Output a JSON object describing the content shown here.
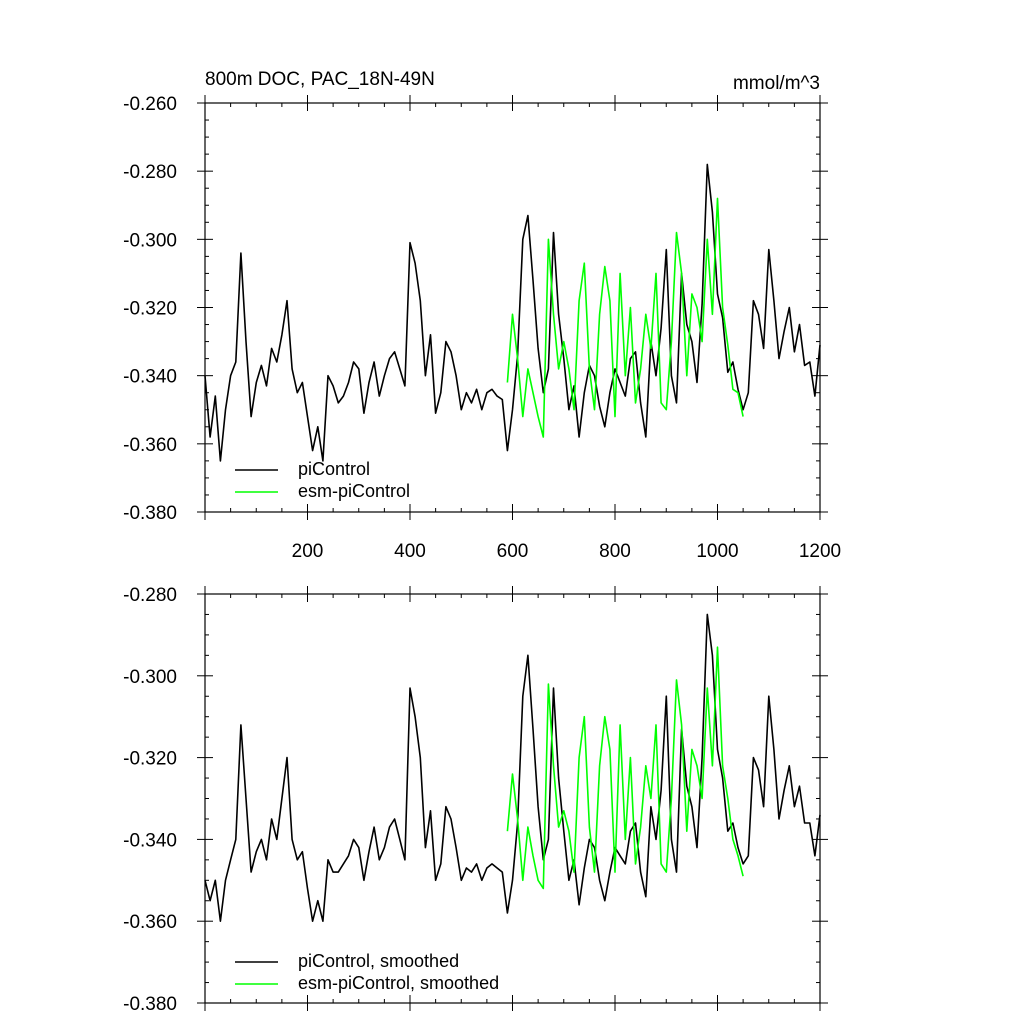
{
  "chart_data": [
    {
      "type": "line",
      "title": "800m DOC, PAC_18N-49N",
      "units": "mmol/m^3",
      "xlim": [
        0,
        1200
      ],
      "ylim": [
        -0.38,
        -0.26
      ],
      "xticks": [
        200,
        400,
        600,
        800,
        1000,
        1200
      ],
      "xtick_labels": [
        "200",
        "400",
        "600",
        "800",
        "1000",
        "1200"
      ],
      "yticks": [
        -0.26,
        -0.28,
        -0.3,
        -0.32,
        -0.34,
        -0.36,
        -0.38
      ],
      "ytick_labels": [
        "-0.260",
        "-0.280",
        "-0.300",
        "-0.320",
        "-0.340",
        "-0.360",
        "-0.380"
      ],
      "legend_position": "bottom-left",
      "series": [
        {
          "name": "piControl",
          "color": "#000000",
          "x": [
            0,
            10,
            20,
            30,
            40,
            50,
            60,
            70,
            80,
            90,
            100,
            110,
            120,
            130,
            140,
            150,
            160,
            170,
            180,
            190,
            200,
            210,
            220,
            230,
            240,
            250,
            260,
            270,
            280,
            290,
            300,
            310,
            320,
            330,
            340,
            350,
            360,
            370,
            380,
            390,
            400,
            410,
            420,
            430,
            440,
            450,
            460,
            470,
            480,
            490,
            500,
            510,
            520,
            530,
            540,
            550,
            560,
            570,
            580,
            590,
            600,
            610,
            620,
            630,
            640,
            650,
            660,
            670,
            680,
            690,
            700,
            710,
            720,
            730,
            740,
            750,
            760,
            770,
            780,
            790,
            800,
            810,
            820,
            830,
            840,
            850,
            860,
            870,
            880,
            890,
            900,
            910,
            920,
            930,
            940,
            950,
            960,
            970,
            980,
            990,
            1000,
            1010,
            1020,
            1030,
            1040,
            1050,
            1060,
            1070,
            1080,
            1090,
            1100,
            1110,
            1120,
            1130,
            1140,
            1150,
            1160,
            1170,
            1180,
            1190,
            1200
          ],
          "values": [
            -0.34,
            -0.358,
            -0.346,
            -0.365,
            -0.35,
            -0.34,
            -0.336,
            -0.304,
            -0.33,
            -0.352,
            -0.342,
            -0.337,
            -0.343,
            -0.332,
            -0.336,
            -0.328,
            -0.318,
            -0.338,
            -0.345,
            -0.342,
            -0.352,
            -0.362,
            -0.355,
            -0.365,
            -0.34,
            -0.343,
            -0.348,
            -0.346,
            -0.342,
            -0.336,
            -0.338,
            -0.351,
            -0.342,
            -0.336,
            -0.346,
            -0.34,
            -0.335,
            -0.333,
            -0.338,
            -0.343,
            -0.301,
            -0.307,
            -0.318,
            -0.34,
            -0.328,
            -0.351,
            -0.345,
            -0.33,
            -0.333,
            -0.34,
            -0.35,
            -0.345,
            -0.348,
            -0.344,
            -0.35,
            -0.345,
            -0.344,
            -0.346,
            -0.347,
            -0.362,
            -0.35,
            -0.334,
            -0.3,
            -0.293,
            -0.312,
            -0.332,
            -0.345,
            -0.338,
            -0.298,
            -0.322,
            -0.335,
            -0.35,
            -0.343,
            -0.358,
            -0.345,
            -0.337,
            -0.34,
            -0.349,
            -0.355,
            -0.345,
            -0.338,
            -0.342,
            -0.346,
            -0.335,
            -0.333,
            -0.348,
            -0.358,
            -0.33,
            -0.34,
            -0.326,
            -0.303,
            -0.34,
            -0.348,
            -0.31,
            -0.325,
            -0.33,
            -0.342,
            -0.319,
            -0.278,
            -0.292,
            -0.316,
            -0.323,
            -0.339,
            -0.336,
            -0.344,
            -0.35,
            -0.345,
            -0.318,
            -0.322,
            -0.332,
            -0.303,
            -0.318,
            -0.335,
            -0.327,
            -0.32,
            -0.333,
            -0.325,
            -0.337,
            -0.336,
            -0.346,
            -0.331
          ]
        },
        {
          "name": "esm-piControl",
          "color": "#00ff00",
          "x": [
            590,
            600,
            610,
            620,
            630,
            640,
            650,
            660,
            670,
            680,
            690,
            700,
            710,
            720,
            730,
            740,
            750,
            760,
            770,
            780,
            790,
            800,
            810,
            820,
            830,
            840,
            850,
            860,
            870,
            880,
            890,
            900,
            910,
            920,
            930,
            940,
            950,
            960,
            970,
            980,
            990,
            1000,
            1010,
            1020,
            1030,
            1040,
            1050
          ],
          "values": [
            -0.342,
            -0.322,
            -0.335,
            -0.352,
            -0.338,
            -0.345,
            -0.352,
            -0.358,
            -0.3,
            -0.322,
            -0.338,
            -0.33,
            -0.338,
            -0.35,
            -0.318,
            -0.307,
            -0.338,
            -0.35,
            -0.322,
            -0.308,
            -0.318,
            -0.352,
            -0.31,
            -0.34,
            -0.32,
            -0.348,
            -0.338,
            -0.322,
            -0.332,
            -0.31,
            -0.348,
            -0.35,
            -0.33,
            -0.298,
            -0.31,
            -0.34,
            -0.316,
            -0.32,
            -0.33,
            -0.3,
            -0.322,
            -0.288,
            -0.32,
            -0.331,
            -0.344,
            -0.345,
            -0.352
          ]
        }
      ]
    },
    {
      "type": "line",
      "title": "",
      "xlim": [
        0,
        1200
      ],
      "ylim": [
        -0.38,
        -0.28
      ],
      "yticks": [
        -0.28,
        -0.3,
        -0.32,
        -0.34,
        -0.36,
        -0.38
      ],
      "ytick_labels": [
        "-0.280",
        "-0.300",
        "-0.320",
        "-0.340",
        "-0.360",
        "-0.380"
      ],
      "legend_position": "bottom-left",
      "series": [
        {
          "name": "piControl, smoothed",
          "color": "#000000",
          "x": [
            0,
            10,
            20,
            30,
            40,
            50,
            60,
            70,
            80,
            90,
            100,
            110,
            120,
            130,
            140,
            150,
            160,
            170,
            180,
            190,
            200,
            210,
            220,
            230,
            240,
            250,
            260,
            270,
            280,
            290,
            300,
            310,
            320,
            330,
            340,
            350,
            360,
            370,
            380,
            390,
            400,
            410,
            420,
            430,
            440,
            450,
            460,
            470,
            480,
            490,
            500,
            510,
            520,
            530,
            540,
            550,
            560,
            570,
            580,
            590,
            600,
            610,
            620,
            630,
            640,
            650,
            660,
            670,
            680,
            690,
            700,
            710,
            720,
            730,
            740,
            750,
            760,
            770,
            780,
            790,
            800,
            810,
            820,
            830,
            840,
            850,
            860,
            870,
            880,
            890,
            900,
            910,
            920,
            930,
            940,
            950,
            960,
            970,
            980,
            990,
            1000,
            1010,
            1020,
            1030,
            1040,
            1050,
            1060,
            1070,
            1080,
            1090,
            1100,
            1110,
            1120,
            1130,
            1140,
            1150,
            1160,
            1170,
            1180,
            1190,
            1200
          ],
          "values": [
            -0.35,
            -0.355,
            -0.35,
            -0.36,
            -0.35,
            -0.345,
            -0.34,
            -0.312,
            -0.33,
            -0.348,
            -0.343,
            -0.34,
            -0.345,
            -0.335,
            -0.34,
            -0.33,
            -0.32,
            -0.34,
            -0.345,
            -0.343,
            -0.352,
            -0.36,
            -0.355,
            -0.36,
            -0.345,
            -0.348,
            -0.348,
            -0.346,
            -0.344,
            -0.34,
            -0.342,
            -0.35,
            -0.343,
            -0.337,
            -0.345,
            -0.342,
            -0.337,
            -0.335,
            -0.34,
            -0.345,
            -0.303,
            -0.31,
            -0.32,
            -0.342,
            -0.333,
            -0.35,
            -0.346,
            -0.332,
            -0.335,
            -0.342,
            -0.35,
            -0.347,
            -0.348,
            -0.346,
            -0.35,
            -0.347,
            -0.346,
            -0.347,
            -0.348,
            -0.358,
            -0.35,
            -0.336,
            -0.305,
            -0.295,
            -0.313,
            -0.332,
            -0.345,
            -0.34,
            -0.303,
            -0.325,
            -0.338,
            -0.35,
            -0.345,
            -0.356,
            -0.347,
            -0.34,
            -0.342,
            -0.35,
            -0.355,
            -0.348,
            -0.342,
            -0.344,
            -0.346,
            -0.338,
            -0.336,
            -0.348,
            -0.354,
            -0.332,
            -0.34,
            -0.328,
            -0.305,
            -0.34,
            -0.348,
            -0.313,
            -0.327,
            -0.332,
            -0.342,
            -0.32,
            -0.285,
            -0.295,
            -0.318,
            -0.325,
            -0.338,
            -0.336,
            -0.342,
            -0.346,
            -0.344,
            -0.32,
            -0.323,
            -0.332,
            -0.305,
            -0.318,
            -0.335,
            -0.328,
            -0.322,
            -0.332,
            -0.327,
            -0.336,
            -0.336,
            -0.344,
            -0.334
          ]
        },
        {
          "name": "esm-piControl, smoothed",
          "color": "#00ff00",
          "x": [
            590,
            600,
            610,
            620,
            630,
            640,
            650,
            660,
            670,
            680,
            690,
            700,
            710,
            720,
            730,
            740,
            750,
            760,
            770,
            780,
            790,
            800,
            810,
            820,
            830,
            840,
            850,
            860,
            870,
            880,
            890,
            900,
            910,
            920,
            930,
            940,
            950,
            960,
            970,
            980,
            990,
            1000,
            1010,
            1020,
            1030,
            1040,
            1050
          ],
          "values": [
            -0.338,
            -0.324,
            -0.335,
            -0.35,
            -0.337,
            -0.344,
            -0.35,
            -0.352,
            -0.302,
            -0.322,
            -0.337,
            -0.333,
            -0.338,
            -0.348,
            -0.32,
            -0.31,
            -0.337,
            -0.348,
            -0.322,
            -0.31,
            -0.318,
            -0.348,
            -0.312,
            -0.34,
            -0.32,
            -0.346,
            -0.337,
            -0.322,
            -0.33,
            -0.312,
            -0.346,
            -0.348,
            -0.33,
            -0.301,
            -0.312,
            -0.338,
            -0.318,
            -0.322,
            -0.33,
            -0.303,
            -0.322,
            -0.293,
            -0.322,
            -0.33,
            -0.34,
            -0.344,
            -0.349
          ]
        }
      ]
    }
  ]
}
